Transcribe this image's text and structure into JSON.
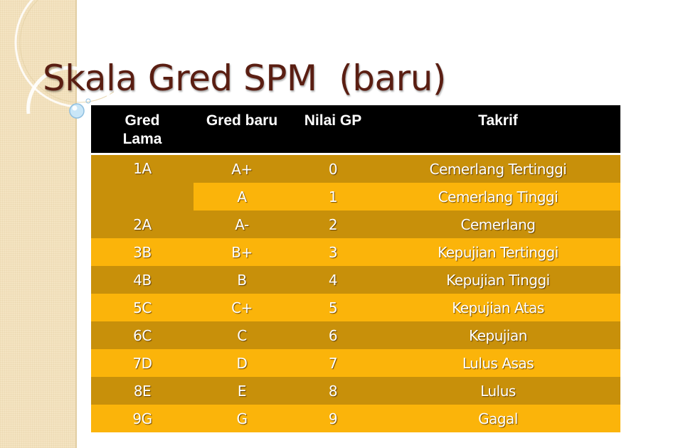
{
  "title": "Skala Gred SPM  (baru)",
  "colors": {
    "header_bg": "#000000",
    "row_dark": "#c8900a",
    "row_light": "#fbb40a",
    "title_color": "#5a1e12",
    "side_band": "#f4e4c2"
  },
  "table": {
    "headers": [
      "Gred\nLama",
      "Gred baru",
      "Nilai GP",
      "Takrif"
    ],
    "rows": [
      {
        "lama": "1A",
        "baru": "A+",
        "gp": "0",
        "takrif": "Cemerlang Tertinggi"
      },
      {
        "lama": "",
        "baru": "A",
        "gp": "1",
        "takrif": "Cemerlang Tinggi"
      },
      {
        "lama": "2A",
        "baru": "A-",
        "gp": "2",
        "takrif": "Cemerlang"
      },
      {
        "lama": "3B",
        "baru": "B+",
        "gp": "3",
        "takrif": "Kepujian Tertinggi"
      },
      {
        "lama": "4B",
        "baru": "B",
        "gp": "4",
        "takrif": "Kepujian Tinggi"
      },
      {
        "lama": "5C",
        "baru": "C+",
        "gp": "5",
        "takrif": "Kepujian Atas"
      },
      {
        "lama": "6C",
        "baru": "C",
        "gp": "6",
        "takrif": "Kepujian"
      },
      {
        "lama": "7D",
        "baru": "D",
        "gp": "7",
        "takrif": "Lulus Asas"
      },
      {
        "lama": "8E",
        "baru": "E",
        "gp": "8",
        "takrif": "Lulus"
      },
      {
        "lama": "9G",
        "baru": "G",
        "gp": "9",
        "takrif": "Gagal"
      }
    ]
  }
}
